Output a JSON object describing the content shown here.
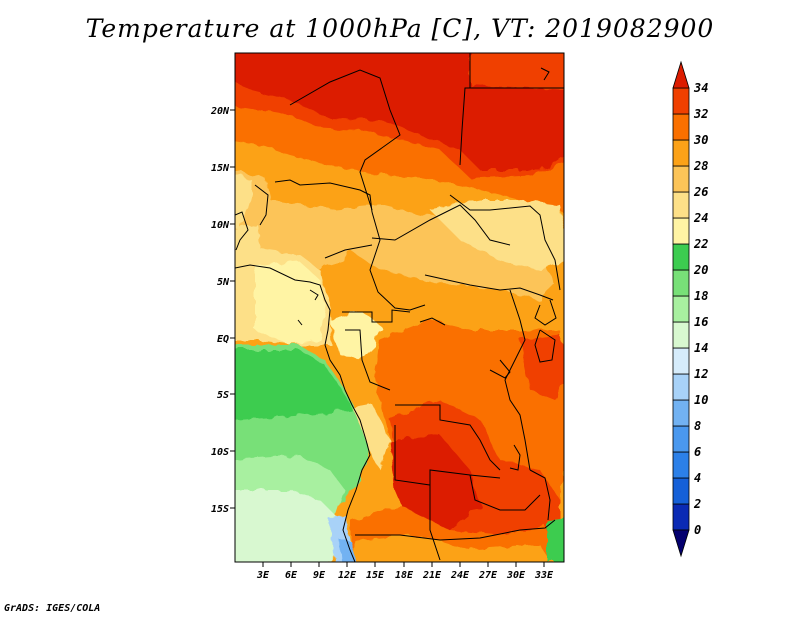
{
  "title": "Temperature at 1000hPa [C], VT: 2019082900",
  "credit": "GrADS: IGES/COLA",
  "map": {
    "type": "filled-contour",
    "variable": "Temperature at 1000hPa",
    "units": "C",
    "lon_ticks": [
      "3E",
      "6E",
      "9E",
      "12E",
      "15E",
      "18E",
      "21E",
      "24E",
      "27E",
      "30E",
      "33E"
    ],
    "lat_ticks": [
      "20N",
      "15N",
      "10N",
      "5N",
      "EQ",
      "5S",
      "10S",
      "15S"
    ],
    "colorbar": {
      "levels": [
        "0",
        "2",
        "4",
        "6",
        "8",
        "10",
        "12",
        "14",
        "16",
        "18",
        "20",
        "22",
        "24",
        "26",
        "28",
        "30",
        "32",
        "34"
      ],
      "colors": [
        "#04006f",
        "#0a2ab4",
        "#1560d8",
        "#2c80e8",
        "#4a98ee",
        "#72b2f2",
        "#a8d2f8",
        "#d6ecfb",
        "#d8f8d0",
        "#a8f0a0",
        "#78e078",
        "#3ccc50",
        "#fff4a4",
        "#fde088",
        "#fcc458",
        "#fca218",
        "#fa7000",
        "#f04000",
        "#dc1c00"
      ]
    }
  }
}
